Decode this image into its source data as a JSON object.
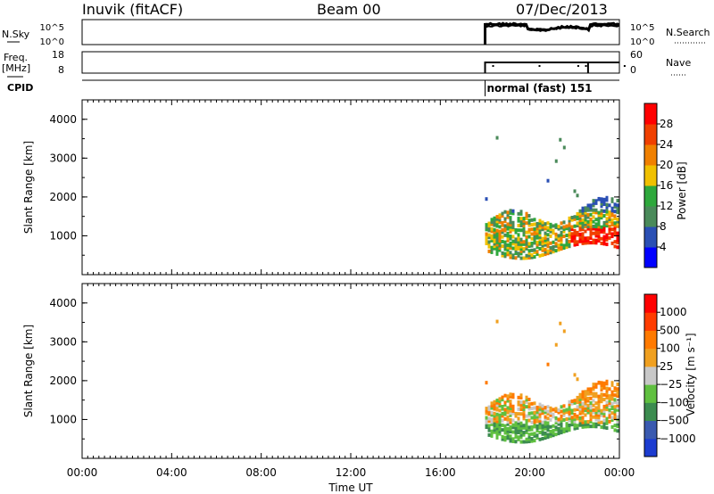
{
  "header": {
    "station": "Inuvik (fitACF)",
    "beam": "Beam 00",
    "date": "07/Dec/2013"
  },
  "side_labels": {
    "nsky": "N.Sky",
    "freq_line1": "Freq.",
    "freq_line2": "[MHz]",
    "cpid": "CPID",
    "nsearch": "N.Search",
    "nave": "Nave",
    "nsky_ticks": [
      "10^5",
      "10^0"
    ],
    "nsearch_ticks": [
      "10^5",
      "10^0"
    ],
    "freq_ticks": [
      "18",
      "8"
    ],
    "nave_ticks": [
      "60",
      "0"
    ]
  },
  "mode_label": "normal (fast) 151",
  "colors": {
    "power_scale": [
      "#0000ff",
      "#2a4fb4",
      "#4a8a5a",
      "#2ea83c",
      "#f0c000",
      "#f08000",
      "#f04000",
      "#ff0000"
    ],
    "velocity_scale": [
      "#ff0000",
      "#ff3c00",
      "#ff7a00",
      "#f0a020",
      "#c8c8c8",
      "#60c040",
      "#3c8c50",
      "#3a5ab0",
      "#1c3cd0"
    ]
  },
  "chart_data": [
    {
      "type": "heatmap",
      "name": "power",
      "ylabel": "Slant Range [km]",
      "yticks": [
        "4000",
        "3000",
        "2000",
        "1000"
      ],
      "ylim": [
        0,
        4500
      ],
      "colorbar_label": "Power [dB]",
      "colorbar_ticks": [
        "28",
        "24",
        "20",
        "16",
        "12",
        "8",
        "4"
      ],
      "colorbar_range": [
        0,
        32
      ]
    },
    {
      "type": "heatmap",
      "name": "velocity",
      "ylabel": "Slant Range [km]",
      "yticks": [
        "4000",
        "3000",
        "2000",
        "1000"
      ],
      "ylim": [
        0,
        4500
      ],
      "colorbar_label": "Velocity [m s⁻¹]",
      "colorbar_ticks": [
        "1000",
        "500",
        "100",
        "25",
        "−25",
        "−100",
        "−500",
        "−1000"
      ]
    }
  ],
  "time_axis": {
    "xlabel": "Time UT",
    "ticks": [
      "00:00",
      "04:00",
      "08:00",
      "12:00",
      "16:00",
      "20:00",
      "00:00"
    ],
    "range_hours": [
      0,
      24
    ],
    "data_start_hour": 18.0,
    "mode_change_hour": 22.6
  }
}
